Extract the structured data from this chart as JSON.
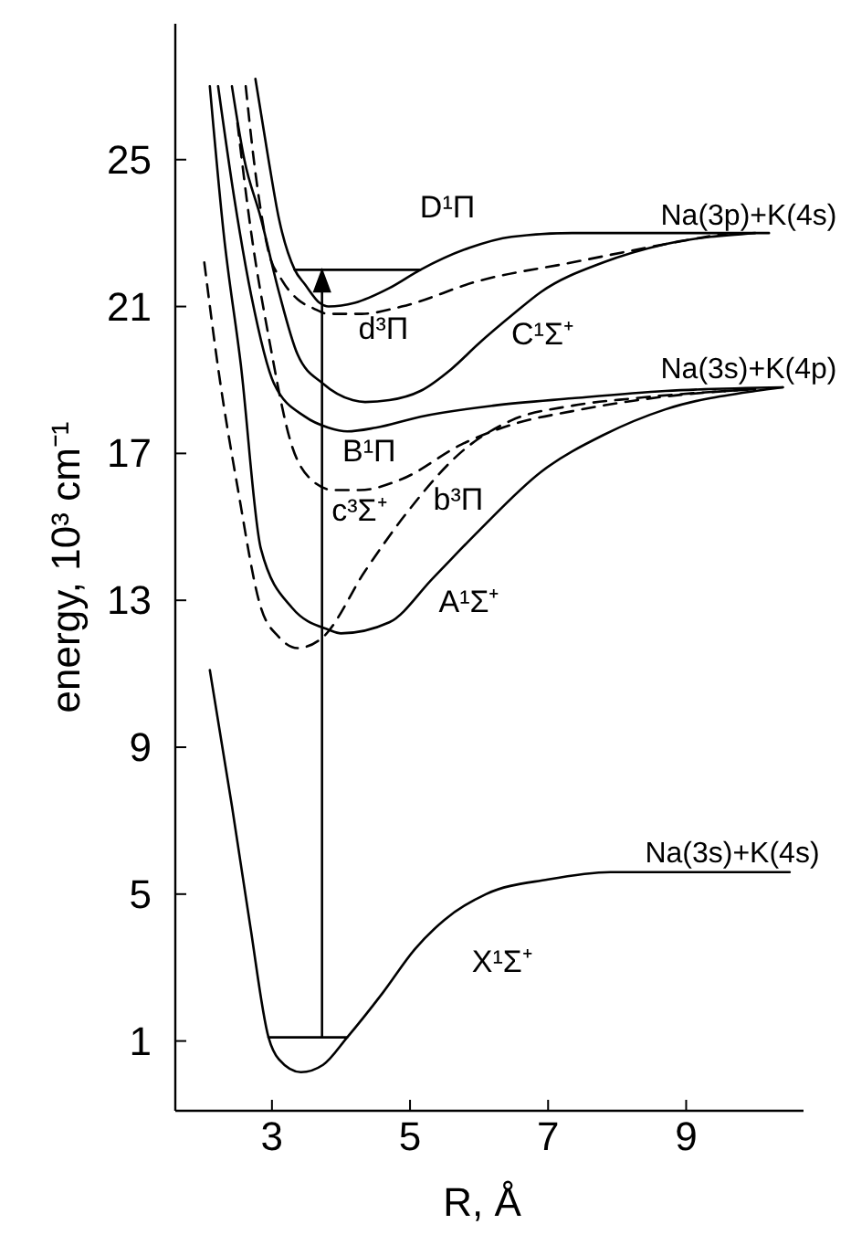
{
  "chart_data": {
    "type": "line",
    "xlabel": "R, Å",
    "ylabel": "energy, 10³ cm⁻¹",
    "xlim": [
      1.6,
      10.7
    ],
    "xticks": [
      3,
      5,
      7,
      9
    ],
    "ylim": [
      -0.9,
      28.7
    ],
    "yticks": [
      1,
      5,
      9,
      13,
      17,
      21,
      25
    ],
    "line_style": "solid",
    "annotations": [
      "Na(3p)+K(4s)",
      "Na(3s)+K(4p)",
      "Na(3s)+K(4s)"
    ],
    "series": [
      {
        "name": "D¹Π",
        "color": "#000000",
        "x": [
          2.76,
          2.95,
          3.1,
          3.33,
          3.48,
          3.69,
          3.82,
          4.2,
          4.7,
          5.15,
          5.86,
          6.47,
          7.35,
          10.2
        ],
        "values": [
          27.2,
          25.0,
          23.4,
          22.0,
          21.6,
          21.1,
          21.0,
          21.1,
          21.5,
          22.0,
          22.6,
          22.9,
          23.0,
          23.0
        ]
      },
      {
        "name": "d³Π",
        "color": "#000000",
        "line_style": "dashed",
        "x": [
          2.62,
          2.75,
          2.95,
          3.15,
          3.37,
          3.6,
          3.82,
          4.3,
          4.88,
          6.0,
          7.35,
          8.7,
          9.6
        ],
        "values": [
          27.0,
          24.8,
          22.5,
          21.7,
          21.2,
          20.95,
          20.8,
          20.8,
          21.0,
          21.7,
          22.2,
          22.7,
          23.0
        ]
      },
      {
        "name": "C¹Σ⁺",
        "color": "#000000",
        "x": [
          2.42,
          2.6,
          2.84,
          3.1,
          3.37,
          3.74,
          4.17,
          4.35,
          4.7,
          5.15,
          5.6,
          6.0,
          6.5,
          6.9,
          7.8,
          8.7,
          10.0
        ],
        "values": [
          27.0,
          25.0,
          23.4,
          21.4,
          19.7,
          18.9,
          18.45,
          18.4,
          18.45,
          18.7,
          19.3,
          20.0,
          20.8,
          21.4,
          22.2,
          22.7,
          23.0
        ]
      },
      {
        "name": "B¹Π",
        "color": "#000000",
        "x": [
          2.22,
          2.45,
          2.7,
          3.03,
          3.48,
          3.82,
          4.09,
          4.5,
          5.15,
          6.2,
          7.35,
          8.7,
          10.4
        ],
        "values": [
          27.0,
          24.0,
          21.3,
          18.9,
          18.0,
          17.7,
          17.6,
          17.7,
          18.0,
          18.3,
          18.5,
          18.7,
          18.8
        ]
      },
      {
        "name": "c³Σ⁺",
        "color": "#000000",
        "line_style": "dashed",
        "x": [
          2.5,
          2.7,
          2.95,
          3.29,
          3.56,
          3.9,
          4.27,
          4.88,
          5.75,
          6.5,
          7.35,
          8.7,
          10.0
        ],
        "values": [
          26.0,
          23.0,
          20.2,
          17.2,
          16.3,
          16.0,
          16.0,
          16.3,
          17.25,
          17.8,
          18.15,
          18.55,
          18.75
        ]
      },
      {
        "name": "b³Π",
        "color": "#000000",
        "line_style": "dashed",
        "x": [
          2.02,
          2.23,
          2.5,
          2.84,
          3.1,
          3.37,
          3.74,
          4.35,
          4.96,
          5.75,
          6.47,
          7.35,
          8.24,
          10.0
        ],
        "values": [
          22.2,
          19.2,
          16.1,
          12.8,
          12.0,
          11.7,
          12.0,
          13.8,
          15.4,
          17.05,
          17.9,
          18.3,
          18.5,
          18.75
        ]
      },
      {
        "name": "A¹Σ⁺",
        "color": "#000000",
        "x": [
          2.1,
          2.3,
          2.55,
          2.84,
          3.29,
          3.82,
          4.0,
          4.7,
          5.33,
          6.0,
          6.9,
          7.8,
          8.7,
          10.0,
          10.4
        ],
        "values": [
          27.0,
          23.0,
          19.4,
          14.4,
          12.8,
          12.2,
          12.1,
          12.4,
          13.6,
          14.9,
          16.5,
          17.5,
          18.2,
          18.7,
          18.8
        ]
      },
      {
        "name": "X¹Σ⁺",
        "color": "#000000",
        "x": [
          2.1,
          2.42,
          2.68,
          2.95,
          3.1,
          3.42,
          3.74,
          4.09,
          4.6,
          5.07,
          5.5,
          6.1,
          7.0,
          7.9,
          10.5
        ],
        "values": [
          11.1,
          7.4,
          4.2,
          1.1,
          0.5,
          0.15,
          0.35,
          1.1,
          2.3,
          3.5,
          4.3,
          5.0,
          5.4,
          5.6,
          5.6
        ]
      },
      {
        "color": "#000000",
        "x": [
          2.95,
          4.09
        ],
        "values": [
          1.1,
          1.1
        ]
      },
      {
        "color": "#000000",
        "x": [
          3.33,
          5.15
        ],
        "values": [
          22.0,
          22.0
        ]
      }
    ]
  }
}
